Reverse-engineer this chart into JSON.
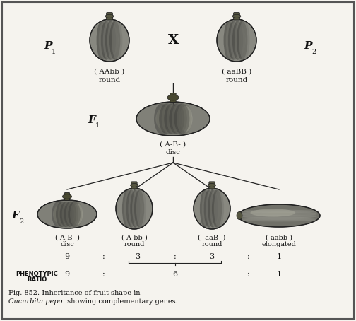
{
  "bg_color": "#f5f3ee",
  "border_color": "#555555",
  "p1_label": "P",
  "p1_sub": "1",
  "p2_label": "P",
  "p2_sub": "2",
  "f1_label": "F",
  "f1_sub": "1",
  "f2_label": "F",
  "f2_sub": "2",
  "p1_genotype": "( AAbb )",
  "p1_phenotype": "round",
  "p2_genotype": "( aaBB )",
  "p2_phenotype": "round",
  "f1_genotype": "( A-B- )",
  "f1_phenotype": "disc",
  "f2_labels": [
    {
      "genotype": "( A-B- )",
      "phenotype": "disc"
    },
    {
      "genotype": "( A-bb )",
      "phenotype": "round"
    },
    {
      "genotype": "( -aaB- )",
      "phenotype": "round"
    },
    {
      "genotype": "( aabb )",
      "phenotype": "elongated"
    }
  ],
  "ratio_row": [
    "9",
    ":",
    "3",
    ":",
    "3",
    ":",
    "1"
  ],
  "phenotypic_label1": "PHENOTYPIC",
  "phenotypic_label2": "RATIO",
  "phen_data": [
    "9",
    ":",
    "6",
    ":",
    "1"
  ],
  "cross_symbol": "X",
  "caption_plain": "Fig. 852. Inheritance of fruit shape in ",
  "caption_italic": "Cucurbita pepo",
  "caption_end": " showing complementary genes.",
  "text_color": "#111111",
  "line_color": "#222222",
  "fruit_dark": "#222222",
  "fruit_mid": "#666666",
  "fruit_light": "#aaaaaa",
  "fruit_fill": "#999999",
  "fruit_fill2": "#cccccc"
}
